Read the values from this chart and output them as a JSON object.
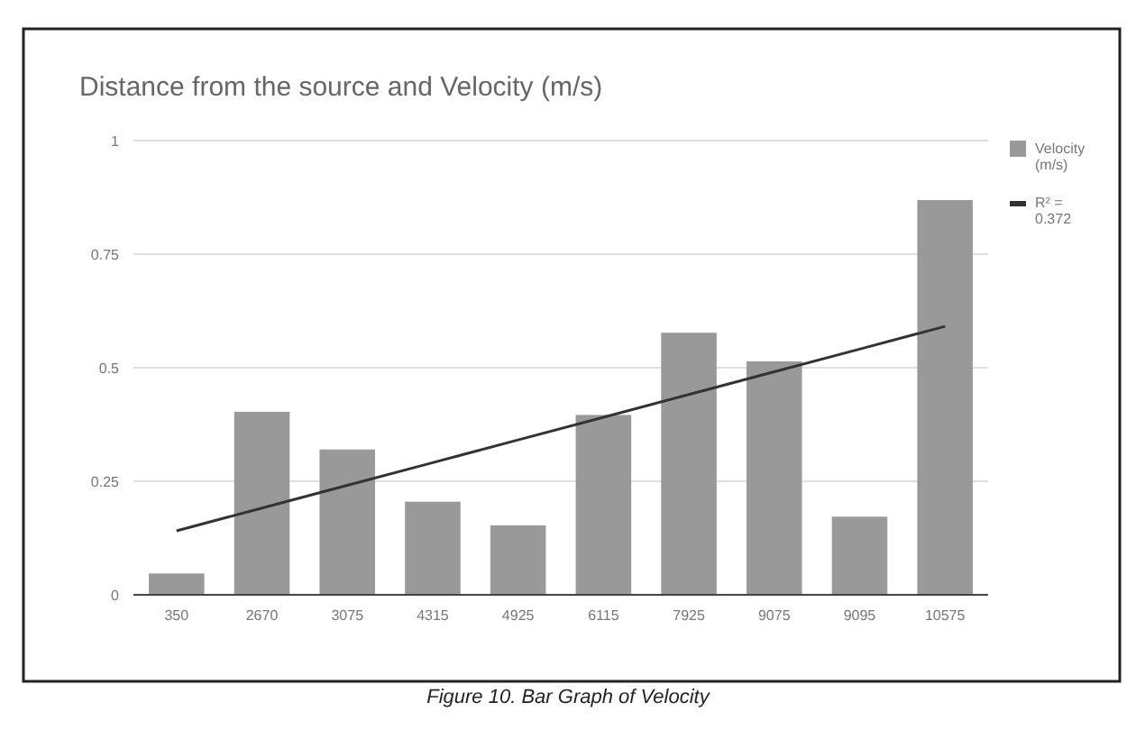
{
  "chart_data": {
    "type": "bar",
    "title": "Distance from the source and Velocity (m/s)",
    "categories": [
      "350",
      "2670",
      "3075",
      "4315",
      "4925",
      "6115",
      "7925",
      "9075",
      "9095",
      "10575"
    ],
    "series": [
      {
        "name": "Velocity (m/s)",
        "color": "#999999",
        "values": [
          0.047,
          0.403,
          0.32,
          0.205,
          0.153,
          0.396,
          0.577,
          0.514,
          0.172,
          0.869
        ]
      },
      {
        "name": "R² = 0.372",
        "type": "line",
        "color": "#333333",
        "values": [
          0.141,
          0.191,
          0.241,
          0.291,
          0.341,
          0.391,
          0.441,
          0.491,
          0.541,
          0.591
        ]
      }
    ],
    "ylim": [
      0,
      1
    ],
    "yticks": [
      0,
      0.25,
      0.5,
      0.75,
      1
    ],
    "grid": "y",
    "legend": "right",
    "marker": "none",
    "annotations": [
      "Figure 10. Bar Graph of Velocity"
    ]
  }
}
